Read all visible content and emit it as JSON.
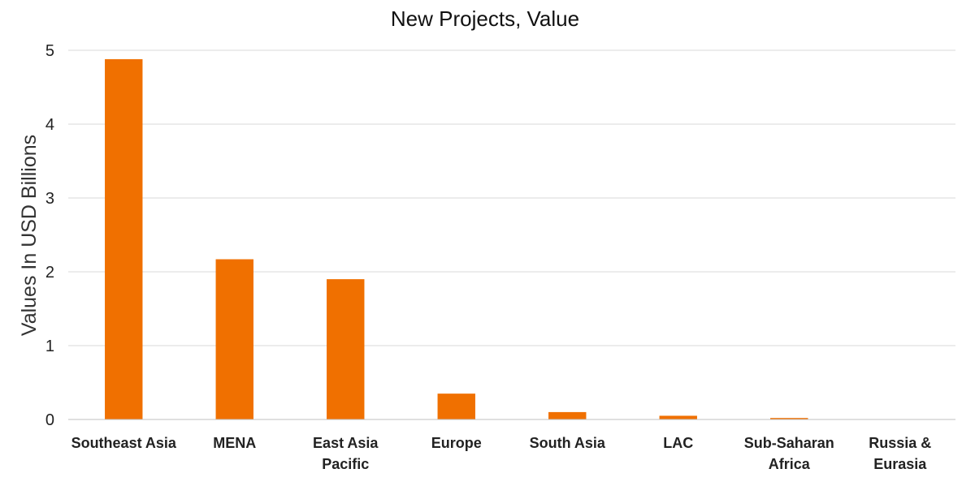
{
  "chart_data": {
    "type": "bar",
    "title": "New Projects, Value",
    "ylabel": "Values In USD Billions",
    "xlabel": "",
    "categories": [
      [
        "Southeast Asia"
      ],
      [
        "MENA"
      ],
      [
        "East Asia",
        "Pacific"
      ],
      [
        "Europe"
      ],
      [
        "South Asia"
      ],
      [
        "LAC"
      ],
      [
        "Sub-Saharan",
        "Africa"
      ],
      [
        "Russia &",
        "Eurasia"
      ]
    ],
    "values": [
      4.88,
      2.17,
      1.9,
      0.35,
      0.1,
      0.05,
      0.02,
      0
    ],
    "ylim": [
      0,
      5
    ],
    "yticks": [
      0,
      1,
      2,
      3,
      4,
      5
    ],
    "grid": true,
    "legend": "none",
    "bar_color": "#f07000"
  }
}
